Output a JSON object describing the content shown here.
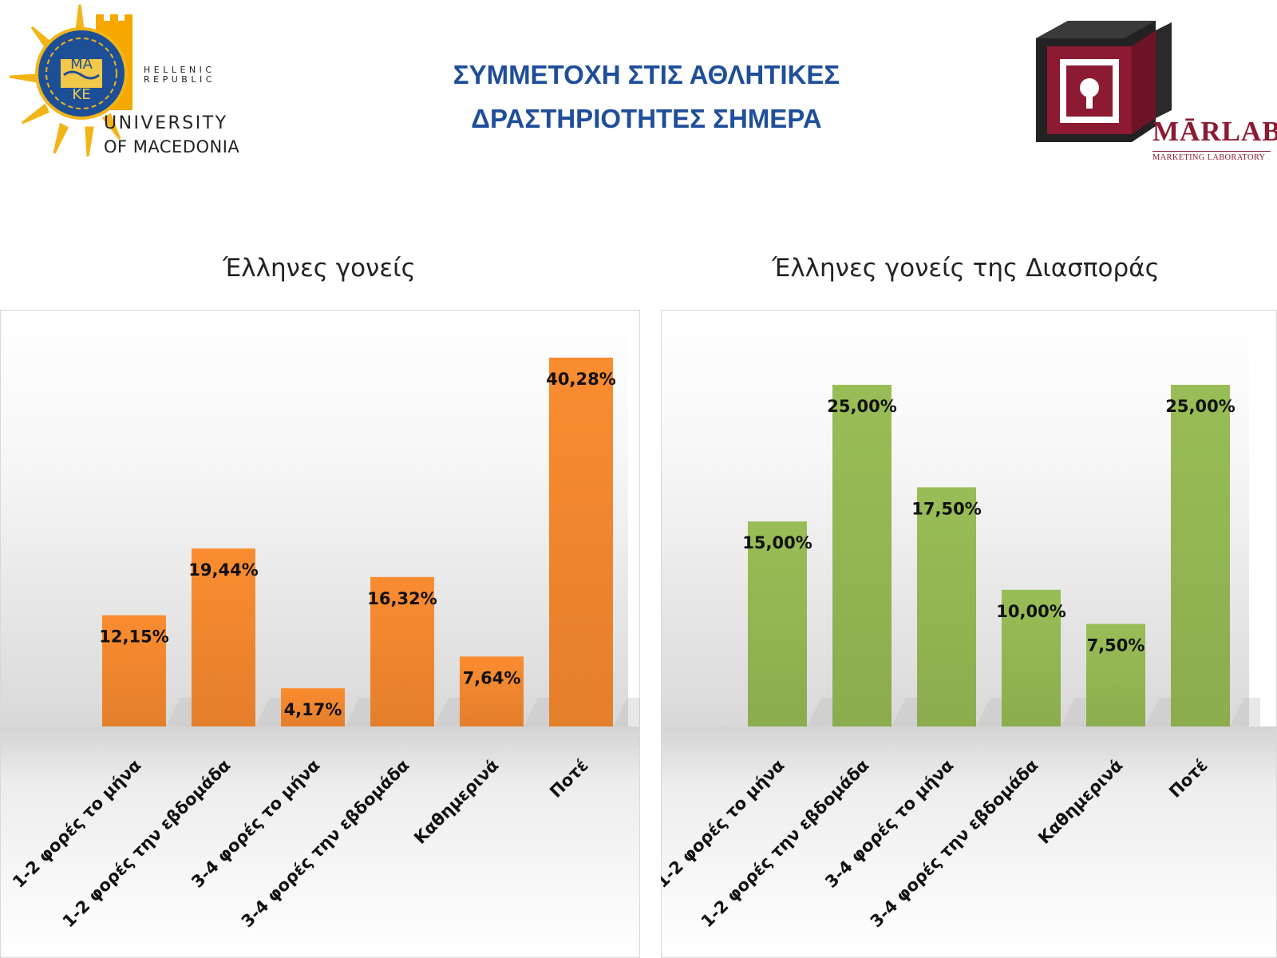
{
  "header": {
    "title_line1": "ΣΥΜΜΕΤΟΧΗ ΣΤΙΣ ΑΘΛΗΤΙΚΕΣ",
    "title_line2": "ΔΡΑΣΤΗΡΙΟΤΗΤΕΣ ΣΗΜΕΡΑ"
  },
  "logos": {
    "university": {
      "seal_text_top": "ΜΑ",
      "seal_text_bottom": "ΚΕ",
      "republic_line1": "HELLENIC",
      "republic_line2": "REPUBLIC",
      "name_line1": "UNIVERSITY",
      "name_line2": "OF MACEDONIA",
      "icon": "university-seal-icon"
    },
    "marlab": {
      "name": "MᾹRLAB",
      "subtitle": "MARKETING LABORATORY",
      "icon": "marlab-box-icon",
      "color": "#8c1a32"
    }
  },
  "chart_data": [
    {
      "type": "bar",
      "title": "Έλληνες γονείς",
      "categories": [
        "1-2 φορές το μήνα",
        "1-2 φορές την εβδομάδα",
        "3-4 φορές το μήνα",
        "3-4 φορές την εβδομάδα",
        "Καθημερινά",
        "Ποτέ"
      ],
      "values": [
        12.15,
        19.44,
        4.17,
        16.32,
        7.64,
        40.28
      ],
      "value_labels": [
        "12,15%",
        "19,44%",
        "4,17%",
        "16,32%",
        "7,64%",
        "40,28%"
      ],
      "color": "#f5892f",
      "grid": false,
      "legend": "none"
    },
    {
      "type": "bar",
      "title": "Έλληνες γονείς της Διασποράς",
      "categories": [
        "1-2 φορές το μήνα",
        "1-2 φορές την εβδομάδα",
        "3-4 φορές το μήνα",
        "3-4 φορές την εβδομάδα",
        "Καθημερινά",
        "Ποτέ"
      ],
      "values": [
        15.0,
        25.0,
        17.5,
        10.0,
        7.5,
        25.0
      ],
      "value_labels": [
        "15,00%",
        "25,00%",
        "17,50%",
        "10,00%",
        "7,50%",
        "25,00%"
      ],
      "color": "#96b954",
      "grid": false,
      "legend": "none"
    }
  ]
}
